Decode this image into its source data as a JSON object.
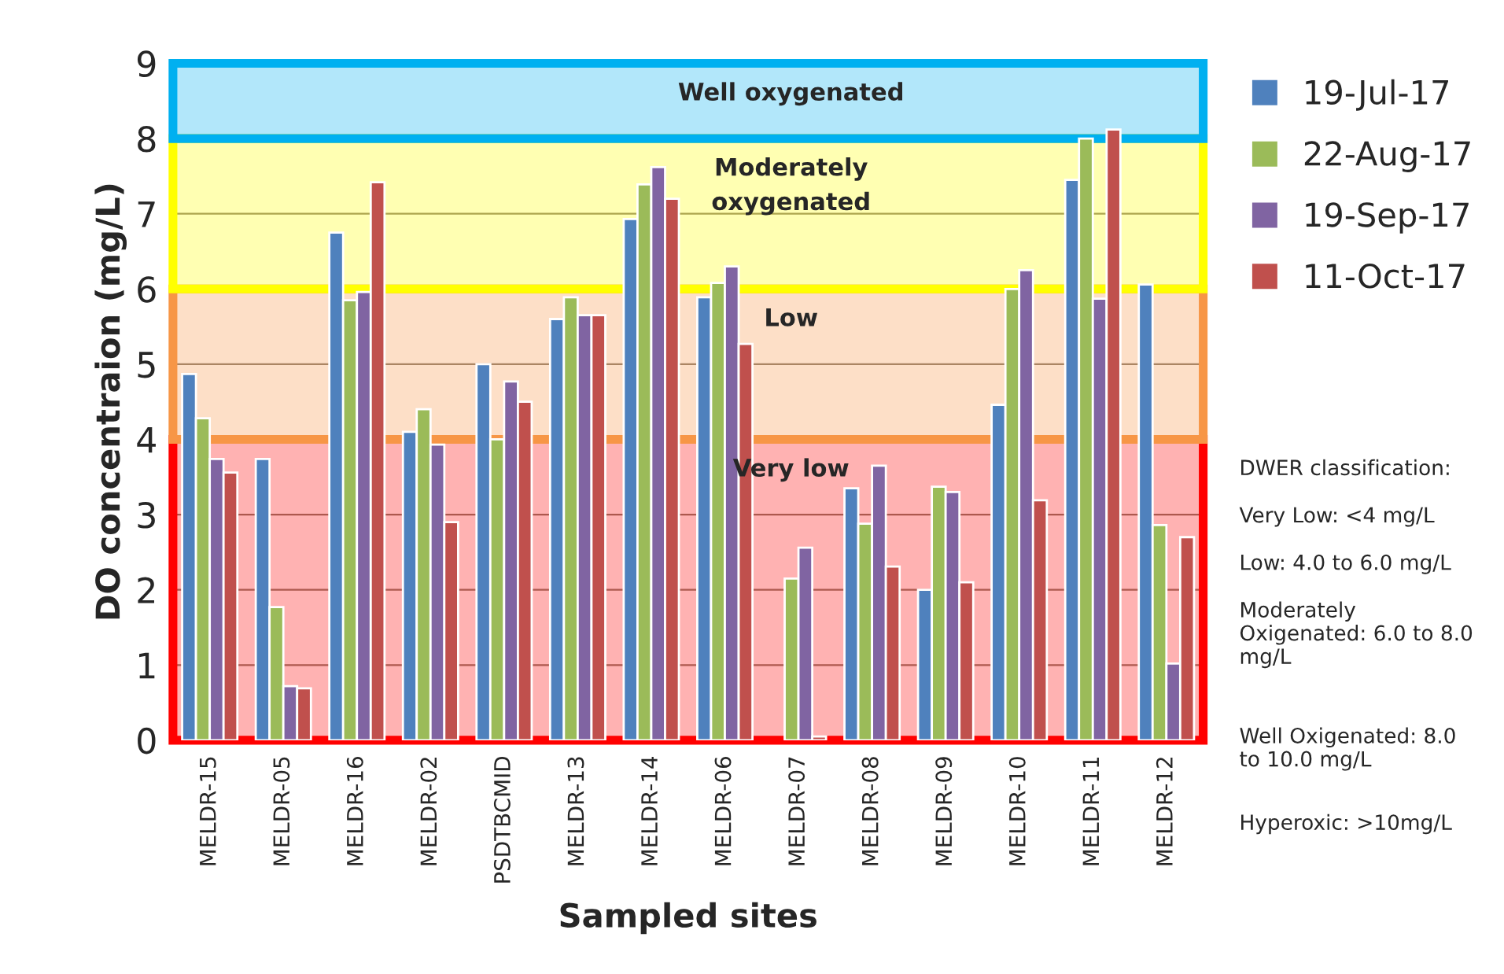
{
  "chart_data": {
    "type": "bar",
    "xlabel": "Sampled sites",
    "ylabel": "DO concentraion (mg/L)",
    "categories": [
      "MELDR-15",
      "MELDR-05",
      "MELDR-16",
      "MELDR-02",
      "PSDTBCMID",
      "MELDR-13",
      "MELDR-14",
      "MELDR-06",
      "MELDR-07",
      "MELDR-08",
      "MELDR-09",
      "MELDR-10",
      "MELDR-11",
      "MELDR-12"
    ],
    "series": [
      {
        "name": "19-Jul-17",
        "color": "#4f81bd",
        "values": [
          4.87,
          3.74,
          6.75,
          4.1,
          5.0,
          5.6,
          6.93,
          5.89,
          null,
          3.35,
          2.0,
          4.46,
          7.45,
          6.06
        ]
      },
      {
        "name": "22-Aug-17",
        "color": "#9bbb59",
        "values": [
          4.28,
          1.77,
          5.85,
          4.4,
          4.0,
          5.89,
          7.39,
          6.08,
          2.15,
          2.88,
          3.37,
          6.0,
          8.0,
          2.86
        ]
      },
      {
        "name": "19-Sep-17",
        "color": "#8064a2",
        "values": [
          3.74,
          0.72,
          5.96,
          3.93,
          4.77,
          5.65,
          7.62,
          6.3,
          2.56,
          3.65,
          3.3,
          6.25,
          5.87,
          1.02
        ]
      },
      {
        "name": "11-Oct-17",
        "color": "#c0504d",
        "values": [
          3.56,
          0.69,
          7.42,
          2.9,
          4.5,
          5.65,
          7.2,
          5.27,
          0.05,
          2.31,
          2.1,
          3.19,
          8.12,
          2.7
        ]
      }
    ],
    "ylim": [
      0,
      9
    ],
    "yticks": [
      0,
      1,
      2,
      3,
      4,
      5,
      6,
      7,
      8,
      9
    ],
    "grid": "y",
    "legend": "right",
    "bands": [
      {
        "axis": "y",
        "from": 0,
        "to": 4,
        "label": "Very low",
        "color": "#ff0000"
      },
      {
        "axis": "y",
        "from": 4,
        "to": 6,
        "label": "Low",
        "color": "#f79646"
      },
      {
        "axis": "y",
        "from": 6,
        "to": 8,
        "label": "Moderately\noxygenated",
        "color": "#ffff00"
      },
      {
        "axis": "y",
        "from": 8,
        "to": 9,
        "label": "Well oxygenated",
        "color": "#00b0f0"
      }
    ],
    "annotations": [
      "DWER classification:",
      "Very Low: <4 mg/L",
      "Low: 4.0 to 6.0 mg/L",
      "Moderately\nOxigenated: 6.0 to 8.0\nmg/L",
      "Well Oxigenated: 8.0\nto 10.0 mg/L",
      "Hyperoxic: >10mg/L"
    ]
  }
}
